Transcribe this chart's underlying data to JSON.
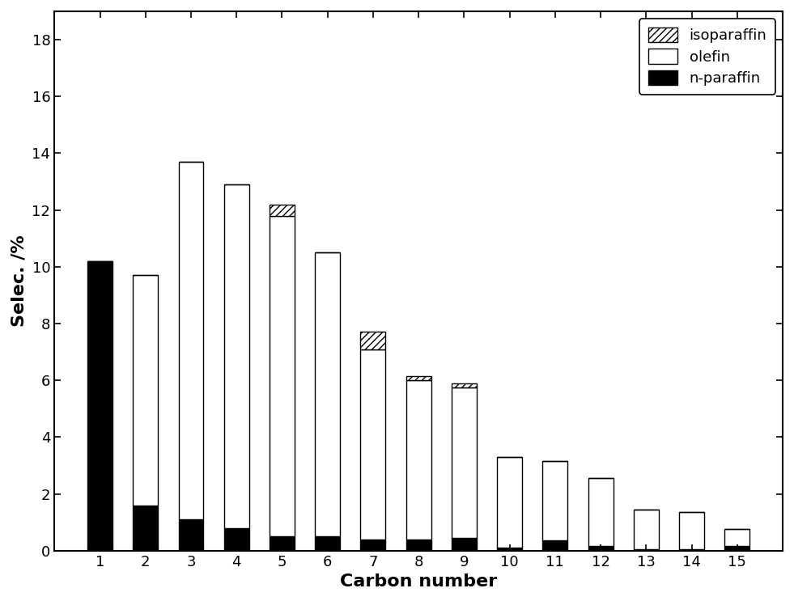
{
  "carbon_numbers": [
    1,
    2,
    3,
    4,
    5,
    6,
    7,
    8,
    9,
    10,
    11,
    12,
    13,
    14,
    15
  ],
  "n_paraffin": [
    10.2,
    1.6,
    1.1,
    0.8,
    0.5,
    0.5,
    0.4,
    0.4,
    0.45,
    0.1,
    0.35,
    0.15,
    0.05,
    0.05,
    0.15
  ],
  "olefin": [
    0.0,
    8.1,
    12.6,
    12.1,
    11.3,
    10.0,
    6.7,
    5.6,
    5.3,
    3.2,
    2.8,
    2.4,
    1.4,
    1.3,
    0.6
  ],
  "isoparaffin": [
    0.0,
    0.0,
    0.0,
    0.0,
    0.4,
    0.0,
    0.6,
    0.15,
    0.15,
    0.0,
    0.0,
    0.0,
    0.0,
    0.0,
    0.0
  ],
  "xlabel": "Carbon number",
  "ylabel": "Selec. /%",
  "ylim": [
    0,
    19
  ],
  "yticks": [
    0,
    2,
    4,
    6,
    8,
    10,
    12,
    14,
    16,
    18
  ],
  "background_color": "#ffffff",
  "bar_width": 0.55,
  "n_paraffin_color": "#000000",
  "olefin_color": "#ffffff",
  "olefin_edgecolor": "#000000",
  "isoparaffin_hatch": "////",
  "isoparaffin_facecolor": "#ffffff",
  "isoparaffin_edgecolor": "#000000",
  "title_fontsize": 14,
  "label_fontsize": 16,
  "tick_fontsize": 13,
  "legend_fontsize": 13
}
